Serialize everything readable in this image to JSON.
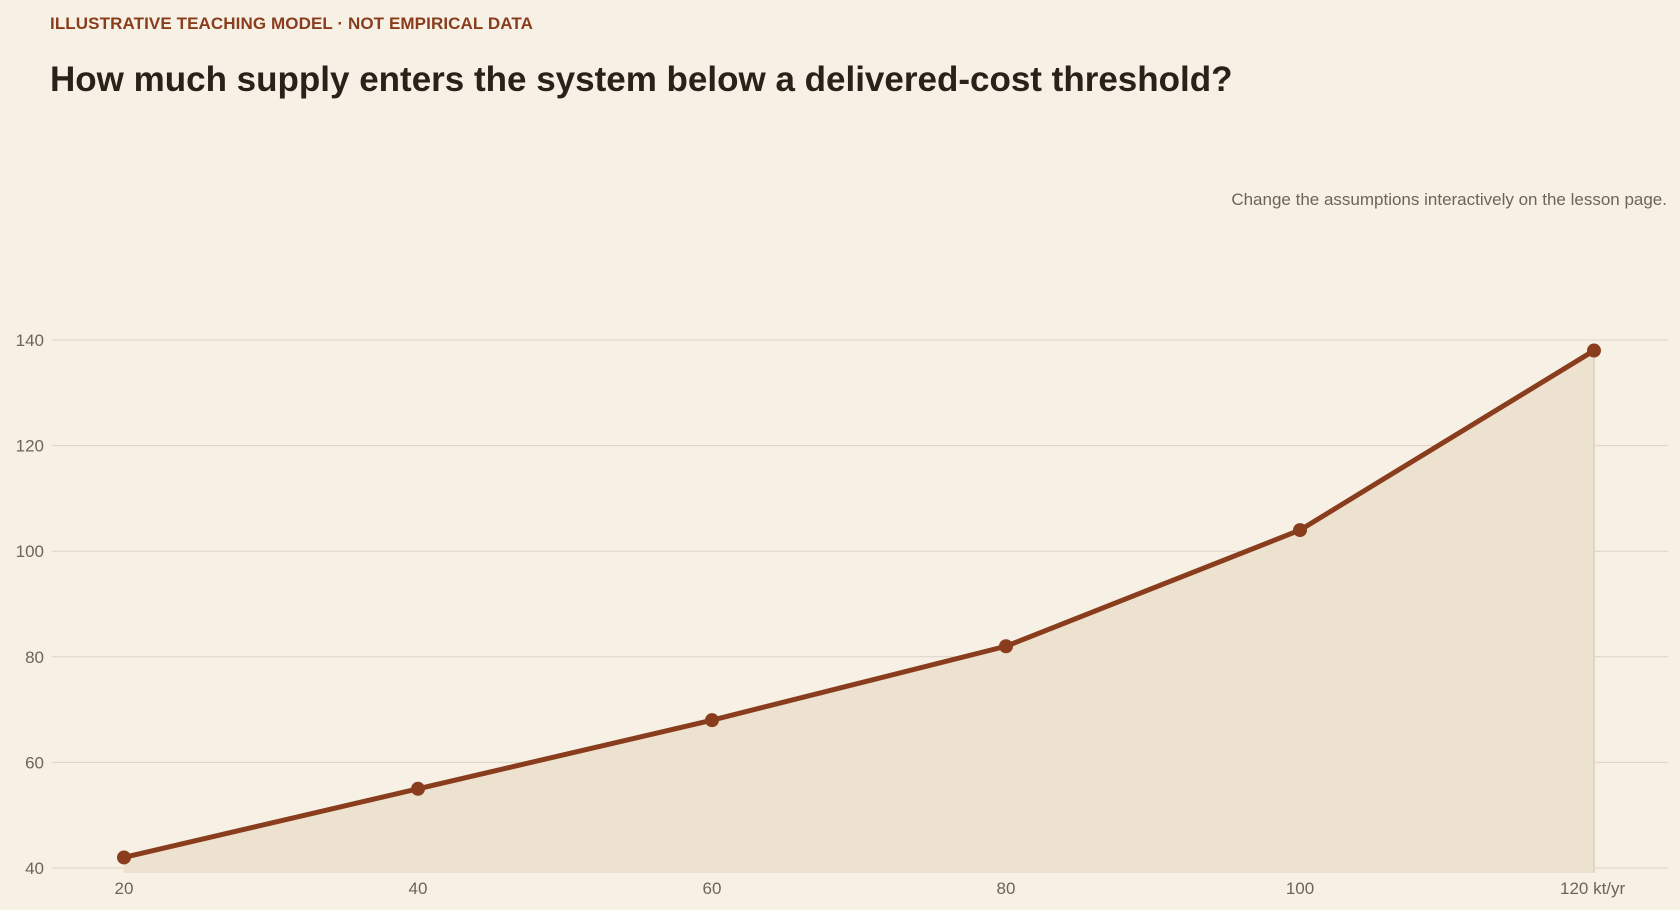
{
  "header": {
    "kicker": "ILLUSTRATIVE TEACHING MODEL · NOT EMPIRICAL DATA",
    "title": "How much supply enters the system below a delivered-cost threshold?",
    "note": "Change the assumptions interactively on the lesson page."
  },
  "chart_data": {
    "type": "area",
    "title": "How much supply enters the system below a delivered-cost threshold?",
    "x": [
      20,
      40,
      60,
      80,
      100,
      120
    ],
    "x_tick_labels": [
      "20",
      "40",
      "60",
      "80",
      "100",
      "120 kt/yr"
    ],
    "x_unit": "kt/yr",
    "series": [
      {
        "values": [
          42,
          55,
          68,
          82,
          104,
          138
        ]
      }
    ],
    "y_ticks": [
      40,
      60,
      80,
      100,
      120,
      140
    ],
    "ylim": [
      40,
      140
    ],
    "xlim": [
      20,
      120
    ],
    "grid": true,
    "legend": "none",
    "colors": {
      "line": "#8a3d1c",
      "area": "#ede1cf",
      "grid": "#dcd3c5"
    }
  }
}
